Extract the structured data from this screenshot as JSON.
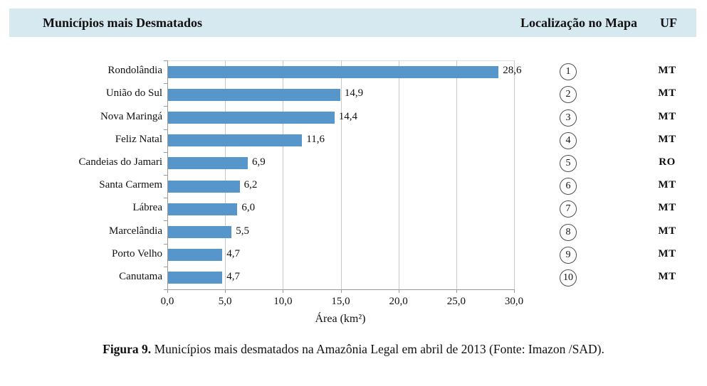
{
  "header": {
    "title": "Municípios mais Desmatados",
    "map_col": "Localização no Mapa",
    "uf_col": "UF"
  },
  "chart_data": {
    "type": "bar",
    "orientation": "horizontal",
    "xlabel": "Área (km²)",
    "xlim": [
      0,
      30
    ],
    "x_ticks": [
      "0,0",
      "5,0",
      "10,0",
      "15,0",
      "20,0",
      "25,0",
      "30,0"
    ],
    "x_tick_values": [
      0,
      5,
      10,
      15,
      20,
      25,
      30
    ],
    "grid": "vertical-only",
    "legend": "none",
    "categories": [
      "Rondolândia",
      "União do Sul",
      "Nova Maringá",
      "Feliz Natal",
      "Candeias do Jamari",
      "Santa Carmem",
      "Lábrea",
      "Marcelândia",
      "Porto Velho",
      "Canutama"
    ],
    "values": [
      28.6,
      14.9,
      14.4,
      11.6,
      6.9,
      6.2,
      6.0,
      5.5,
      4.7,
      4.7
    ],
    "value_labels": [
      "28,6",
      "14,9",
      "14,4",
      "11,6",
      "6,9",
      "6,2",
      "6,0",
      "5,5",
      "4,7",
      "4,7"
    ]
  },
  "rows": [
    {
      "map_number": "1",
      "uf": "MT"
    },
    {
      "map_number": "2",
      "uf": "MT"
    },
    {
      "map_number": "3",
      "uf": "MT"
    },
    {
      "map_number": "4",
      "uf": "MT"
    },
    {
      "map_number": "5",
      "uf": "RO"
    },
    {
      "map_number": "6",
      "uf": "MT"
    },
    {
      "map_number": "7",
      "uf": "MT"
    },
    {
      "map_number": "8",
      "uf": "MT"
    },
    {
      "map_number": "9",
      "uf": "MT"
    },
    {
      "map_number": "10",
      "uf": "MT"
    }
  ],
  "caption": {
    "label": "Figura 9.",
    "text": " Municípios mais desmatados na Amazônia Legal em abril de 2013 (Fonte: Imazon /SAD)."
  },
  "colors": {
    "bar": "#5796cb",
    "header_bg": "#d7e9f0",
    "gridline": "#c9c9c9",
    "axis": "#9a9a9a",
    "circle_border": "#4d4d4d",
    "text": "#111111"
  }
}
